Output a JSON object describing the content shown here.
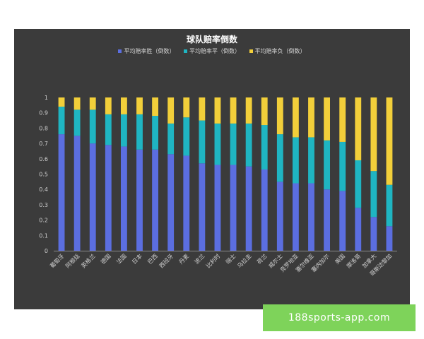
{
  "chart_data": {
    "type": "bar",
    "stacked": true,
    "title": "球队赔率倒数",
    "categories": [
      "葡萄牙",
      "阿根廷",
      "英格兰",
      "德国",
      "法国",
      "日本",
      "巴西",
      "西班牙",
      "丹麦",
      "波兰",
      "比利时",
      "瑞士",
      "乌拉圭",
      "荷兰",
      "威尔士",
      "克罗地亚",
      "塞尔维亚",
      "塞内加尔",
      "美国",
      "摩洛哥",
      "加拿大",
      "哥斯达黎加"
    ],
    "series": [
      {
        "name": "平均赔率胜（倒数）",
        "color": "#5b6ee0",
        "values": [
          0.76,
          0.75,
          0.7,
          0.69,
          0.68,
          0.66,
          0.66,
          0.63,
          0.62,
          0.57,
          0.56,
          0.56,
          0.55,
          0.53,
          0.45,
          0.44,
          0.44,
          0.4,
          0.39,
          0.28,
          0.22,
          0.16
        ]
      },
      {
        "name": "平均赔率平（倒数）",
        "color": "#1fb5c2",
        "values": [
          0.18,
          0.17,
          0.22,
          0.2,
          0.21,
          0.23,
          0.22,
          0.2,
          0.25,
          0.28,
          0.27,
          0.27,
          0.28,
          0.29,
          0.31,
          0.3,
          0.3,
          0.32,
          0.32,
          0.31,
          0.3,
          0.27
        ]
      },
      {
        "name": "平均赔率负（倒数）",
        "color": "#f2cf3a",
        "values": [
          0.06,
          0.08,
          0.08,
          0.11,
          0.11,
          0.11,
          0.12,
          0.17,
          0.13,
          0.15,
          0.17,
          0.17,
          0.17,
          0.18,
          0.24,
          0.26,
          0.26,
          0.28,
          0.29,
          0.41,
          0.48,
          0.57
        ]
      }
    ],
    "ylim": [
      0,
      1
    ],
    "yticks": [
      "0",
      "0.1",
      "0.2",
      "0.3",
      "0.4",
      "0.5",
      "0.6",
      "0.7",
      "0.8",
      "0.9",
      "1"
    ],
    "grid": false,
    "legend_position": "top"
  },
  "watermark": {
    "text": "188sports-app.com"
  }
}
